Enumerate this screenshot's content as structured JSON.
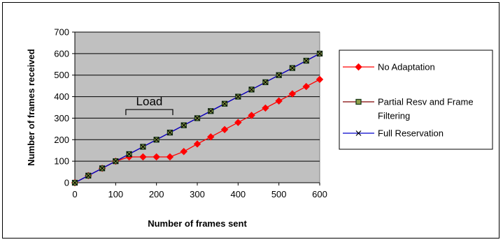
{
  "chart_data": {
    "type": "line",
    "xlabel": "Number of frames sent",
    "ylabel": "Number of frames received",
    "xlim": [
      0,
      600
    ],
    "ylim": [
      0,
      700
    ],
    "xticks": [
      "0",
      "100",
      "200",
      "300",
      "400",
      "500",
      "600"
    ],
    "yticks": [
      "0",
      "100",
      "200",
      "300",
      "400",
      "500",
      "600",
      "700"
    ],
    "grid": "horizontal",
    "legend_position": "right",
    "x": [
      0,
      33,
      67,
      100,
      133,
      167,
      200,
      233,
      267,
      300,
      333,
      367,
      400,
      433,
      467,
      500,
      533,
      567,
      600
    ],
    "series": [
      {
        "name": "No Adaptation",
        "color": "#ff0000",
        "marker": "diamond",
        "values": [
          0,
          33,
          67,
          100,
          120,
          120,
          120,
          120,
          145,
          180,
          213,
          247,
          280,
          313,
          347,
          380,
          413,
          447,
          480
        ]
      },
      {
        "name": "Partial Resv and Frame Filtering",
        "color": "#800000",
        "marker": "square",
        "values": [
          0,
          33,
          67,
          100,
          133,
          167,
          200,
          233,
          267,
          300,
          333,
          367,
          400,
          433,
          467,
          500,
          533,
          567,
          600
        ]
      },
      {
        "name": "Full Reservation",
        "color": "#0000cc",
        "marker": "x",
        "values": [
          0,
          33,
          67,
          100,
          133,
          167,
          200,
          233,
          267,
          300,
          333,
          367,
          400,
          433,
          467,
          500,
          533,
          567,
          600
        ]
      }
    ],
    "annotations": [
      {
        "text": "Load",
        "x_start": 125,
        "x_end": 240,
        "y": 340
      }
    ]
  }
}
